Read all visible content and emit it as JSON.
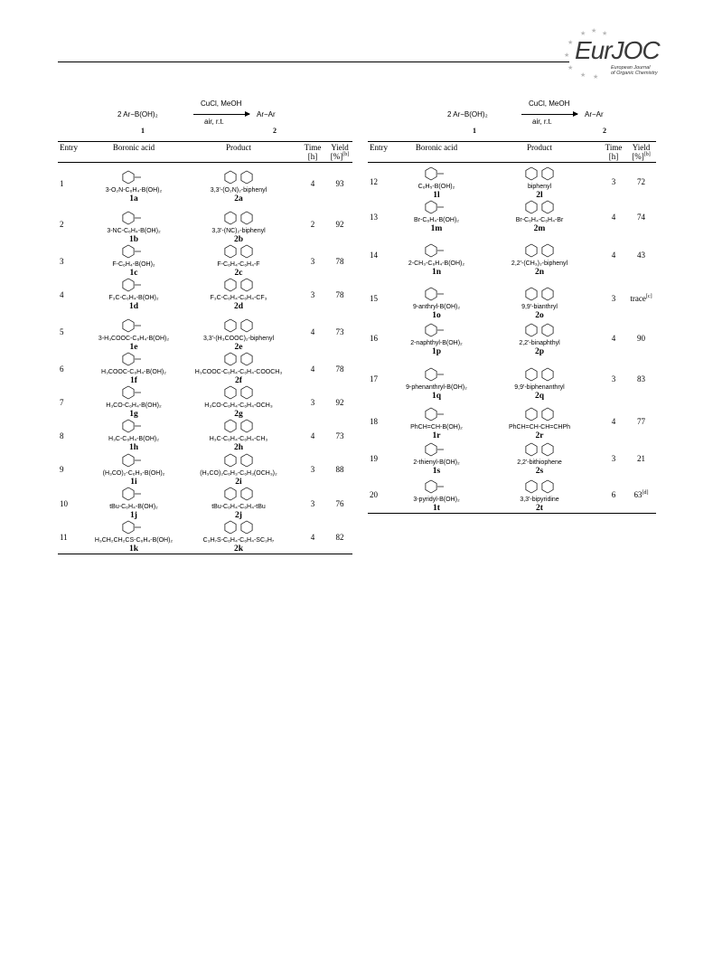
{
  "journal": {
    "logo_text": "EurJOC",
    "logo_subtitle_1": "European Journal",
    "logo_subtitle_2": "of Organic Chemistry"
  },
  "scheme": {
    "reactant": "2 Ar−B(OH)₂",
    "reagents_top": "CuCl, MeOH",
    "reagents_bottom": "air, r.t.",
    "product": "Ar−Ar",
    "reactant_label": "1",
    "product_label": "2"
  },
  "columns": {
    "entry": "Entry",
    "boronic_acid": "Boronic acid",
    "product": "Product",
    "time": "Time",
    "time_unit": "[h]",
    "yield": "Yield",
    "yield_unit": "[%]",
    "yield_note": "[b]"
  },
  "left_rows": [
    {
      "entry": "1",
      "acid_formula": "3-O₂N-C₆H₄-B(OH)₂",
      "acid_label": "1a",
      "product_formula": "3,3'-(O₂N)₂-biphenyl",
      "product_label": "2a",
      "time": "4",
      "yield": "93"
    },
    {
      "entry": "2",
      "acid_formula": "3-NC-C₆H₄-B(OH)₂",
      "acid_label": "1b",
      "product_formula": "3,3'-(NC)₂-biphenyl",
      "product_label": "2b",
      "time": "2",
      "yield": "92"
    },
    {
      "entry": "3",
      "acid_formula": "F-C₆H₄-B(OH)₂",
      "acid_label": "1c",
      "product_formula": "F-C₆H₄-C₆H₄-F",
      "product_label": "2c",
      "time": "3",
      "yield": "78"
    },
    {
      "entry": "4",
      "acid_formula": "F₃C-C₆H₄-B(OH)₂",
      "acid_label": "1d",
      "product_formula": "F₃C-C₆H₄-C₆H₄-CF₃",
      "product_label": "2d",
      "time": "3",
      "yield": "78"
    },
    {
      "entry": "5",
      "acid_formula": "3-H₃COOC-C₆H₄-B(OH)₂",
      "acid_label": "1e",
      "product_formula": "3,3'-(H₃COOC)₂-biphenyl",
      "product_label": "2e",
      "time": "4",
      "yield": "73"
    },
    {
      "entry": "6",
      "acid_formula": "H₃COOC-C₆H₄-B(OH)₂",
      "acid_label": "1f",
      "product_formula": "H₃COOC-C₆H₄-C₆H₄-COOCH₃",
      "product_label": "2f",
      "time": "4",
      "yield": "78"
    },
    {
      "entry": "7",
      "acid_formula": "H₃CO-C₆H₄-B(OH)₂",
      "acid_label": "1g",
      "product_formula": "H₃CO-C₆H₄-C₆H₄-OCH₃",
      "product_label": "2g",
      "time": "3",
      "yield": "92"
    },
    {
      "entry": "8",
      "acid_formula": "H₃C-C₆H₄-B(OH)₂",
      "acid_label": "1h",
      "product_formula": "H₃C-C₆H₄-C₆H₄-CH₃",
      "product_label": "2h",
      "time": "4",
      "yield": "73"
    },
    {
      "entry": "9",
      "acid_formula": "(H₃CO)₂-C₆H₃-B(OH)₂",
      "acid_label": "1i",
      "product_formula": "(H₃CO)₂C₆H₃-C₆H₃(OCH₃)₂",
      "product_label": "2i",
      "time": "3",
      "yield": "88"
    },
    {
      "entry": "10",
      "acid_formula": "tBu-C₆H₄-B(OH)₂",
      "acid_label": "1j",
      "product_formula": "tBu-C₆H₄-C₆H₄-tBu",
      "product_label": "2j",
      "time": "3",
      "yield": "76"
    },
    {
      "entry": "11",
      "acid_formula": "H₃CH₂CH₂CS-C₆H₄-B(OH)₂",
      "acid_label": "1k",
      "product_formula": "C₃H₇S-C₆H₄-C₆H₄-SC₃H₇",
      "product_label": "2k",
      "time": "4",
      "yield": "82"
    }
  ],
  "right_rows": [
    {
      "entry": "12",
      "acid_formula": "C₆H₅-B(OH)₂",
      "acid_label": "1l",
      "product_formula": "biphenyl",
      "product_label": "2l",
      "time": "3",
      "yield": "72",
      "note": ""
    },
    {
      "entry": "13",
      "acid_formula": "Br-C₆H₄-B(OH)₂",
      "acid_label": "1m",
      "product_formula": "Br-C₆H₄-C₆H₄-Br",
      "product_label": "2m",
      "time": "4",
      "yield": "74",
      "note": ""
    },
    {
      "entry": "14",
      "acid_formula": "2-CH₃-C₆H₄-B(OH)₂",
      "acid_label": "1n",
      "product_formula": "2,2'-(CH₃)₂-biphenyl",
      "product_label": "2n",
      "time": "4",
      "yield": "43",
      "note": ""
    },
    {
      "entry": "15",
      "acid_formula": "9-anthryl-B(OH)₂",
      "acid_label": "1o",
      "product_formula": "9,9'-bianthryl",
      "product_label": "2o",
      "time": "3",
      "yield": "trace",
      "note": "[c]"
    },
    {
      "entry": "16",
      "acid_formula": "2-naphthyl-B(OH)₂",
      "acid_label": "1p",
      "product_formula": "2,2'-binaphthyl",
      "product_label": "2p",
      "time": "4",
      "yield": "90",
      "note": ""
    },
    {
      "entry": "17",
      "acid_formula": "9-phenanthryl-B(OH)₂",
      "acid_label": "1q",
      "product_formula": "9,9'-biphenanthryl",
      "product_label": "2q",
      "time": "3",
      "yield": "83",
      "note": ""
    },
    {
      "entry": "18",
      "acid_formula": "PhCH=CH-B(OH)₂",
      "acid_label": "1r",
      "product_formula": "PhCH=CH-CH=CHPh",
      "product_label": "2r",
      "time": "4",
      "yield": "77",
      "note": ""
    },
    {
      "entry": "19",
      "acid_formula": "2-thienyl-B(OH)₂",
      "acid_label": "1s",
      "product_formula": "2,2'-bithiophene",
      "product_label": "2s",
      "time": "3",
      "yield": "21",
      "note": ""
    },
    {
      "entry": "20",
      "acid_formula": "3-pyridyl-B(OH)₂",
      "acid_label": "1t",
      "product_formula": "3,3'-bipyridine",
      "product_label": "2t",
      "time": "6",
      "yield": "63",
      "note": "[d]"
    }
  ]
}
